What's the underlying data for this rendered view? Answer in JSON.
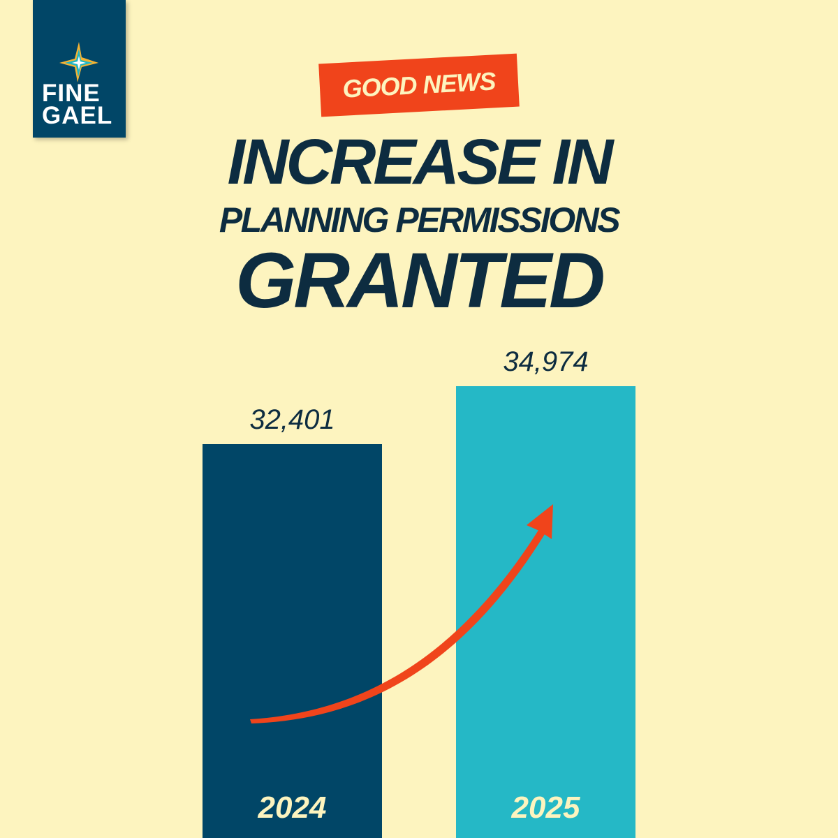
{
  "logo": {
    "line1": "FINE",
    "line2": "GAEL"
  },
  "badge": {
    "text": "GOOD NEWS"
  },
  "headline": {
    "line1": "INCREASE IN",
    "line2": "PLANNING PERMISSIONS",
    "line3": "GRANTED"
  },
  "chart_data": {
    "type": "bar",
    "title": "INCREASE IN PLANNING PERMISSIONS GRANTED",
    "categories": [
      "2024",
      "2025"
    ],
    "values": [
      32401,
      34974
    ],
    "value_labels": [
      "32,401",
      "34,974"
    ],
    "xlabel": "",
    "ylabel": "",
    "grid": false,
    "annotation": "upward trend arrow from 2024 to 2025"
  },
  "colors": {
    "background": "#fdf4bf",
    "bar_2024": "#014667",
    "bar_2025": "#25b8c6",
    "accent": "#f0441b",
    "headline": "#0d2c40",
    "year_label": "#fdf4bf"
  }
}
